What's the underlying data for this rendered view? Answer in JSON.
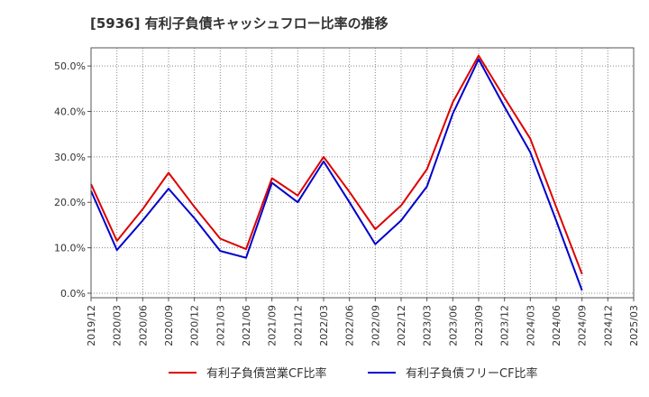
{
  "chart_data": {
    "type": "line",
    "title": "[5936]  有利子負債キャッシュフロー比率の推移",
    "x": [
      "2019/12",
      "2020/03",
      "2020/06",
      "2020/09",
      "2020/12",
      "2021/03",
      "2021/06",
      "2021/09",
      "2021/12",
      "2022/03",
      "2022/06",
      "2022/09",
      "2022/12",
      "2023/03",
      "2023/06",
      "2023/09",
      "2023/12",
      "2024/03",
      "2024/06",
      "2024/09",
      "2024/12",
      "2025/03"
    ],
    "yticks": [
      "0.0%",
      "10.0%",
      "20.0%",
      "30.0%",
      "40.0%",
      "50.0%"
    ],
    "ylim": [
      -1,
      54
    ],
    "grid": true,
    "legend_position": "bottom",
    "series": [
      {
        "name": "有利子負債営業CF比率",
        "color": "#dd0000",
        "values": [
          24.0,
          11.5,
          18.5,
          26.5,
          19.0,
          12.0,
          9.7,
          25.3,
          21.5,
          30.0,
          22.3,
          14.1,
          19.3,
          27.3,
          42.0,
          52.3,
          43.0,
          34.0,
          19.0,
          4.2,
          null,
          null
        ]
      },
      {
        "name": "有利子負債フリーCF比率",
        "color": "#0000cc",
        "values": [
          22.5,
          9.5,
          16.0,
          23.0,
          16.5,
          9.3,
          7.8,
          24.3,
          20.0,
          29.0,
          20.0,
          10.8,
          16.0,
          23.5,
          39.5,
          51.5,
          41.0,
          31.0,
          16.0,
          0.6,
          null,
          null
        ]
      }
    ]
  }
}
